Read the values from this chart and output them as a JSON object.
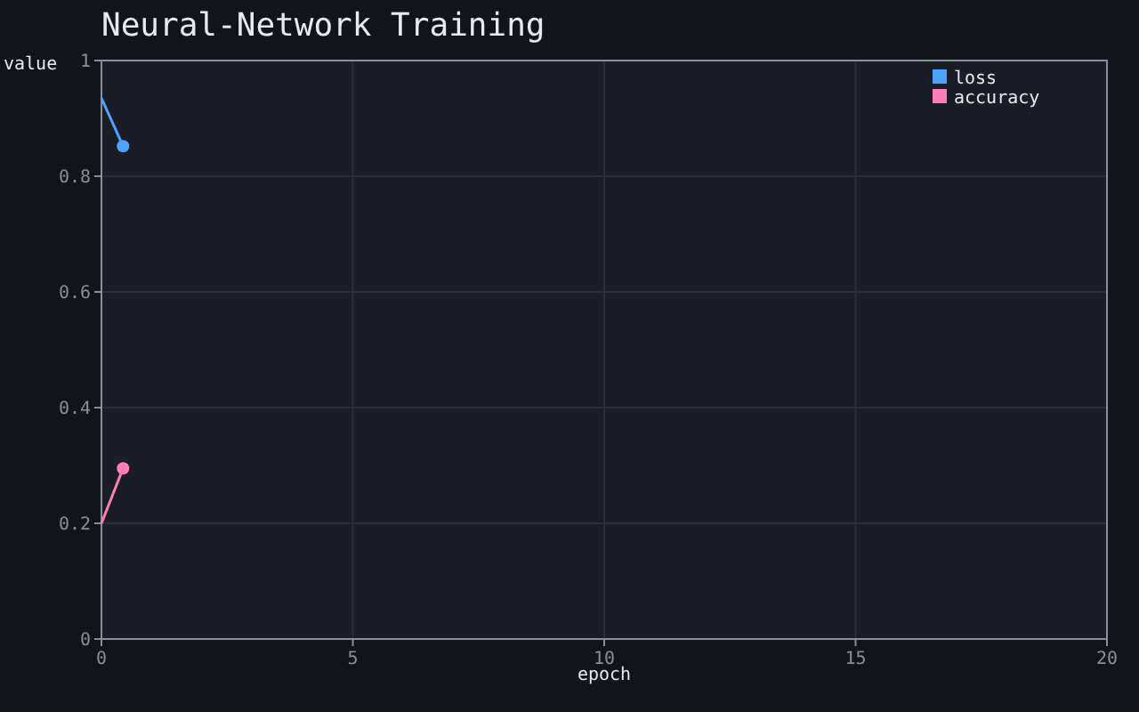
{
  "chart_data": {
    "type": "line",
    "title": "Neural-Network Training",
    "xlabel": "epoch",
    "ylabel": "value",
    "xlim": [
      0,
      20
    ],
    "xticks": [
      0,
      5,
      10,
      15,
      20
    ],
    "ylim": [
      0,
      1
    ],
    "yticks": [
      0,
      0.2,
      0.4,
      0.6,
      0.8,
      1
    ],
    "grid": true,
    "legend": "top right",
    "marker": "circle",
    "x": [
      0,
      0.43
    ],
    "series": [
      {
        "name": "loss",
        "color": "#4da3ff",
        "values": [
          0.935,
          0.852
        ]
      },
      {
        "name": "accuracy",
        "color": "#ff7eb6",
        "values": [
          0.2,
          0.295
        ]
      }
    ]
  }
}
